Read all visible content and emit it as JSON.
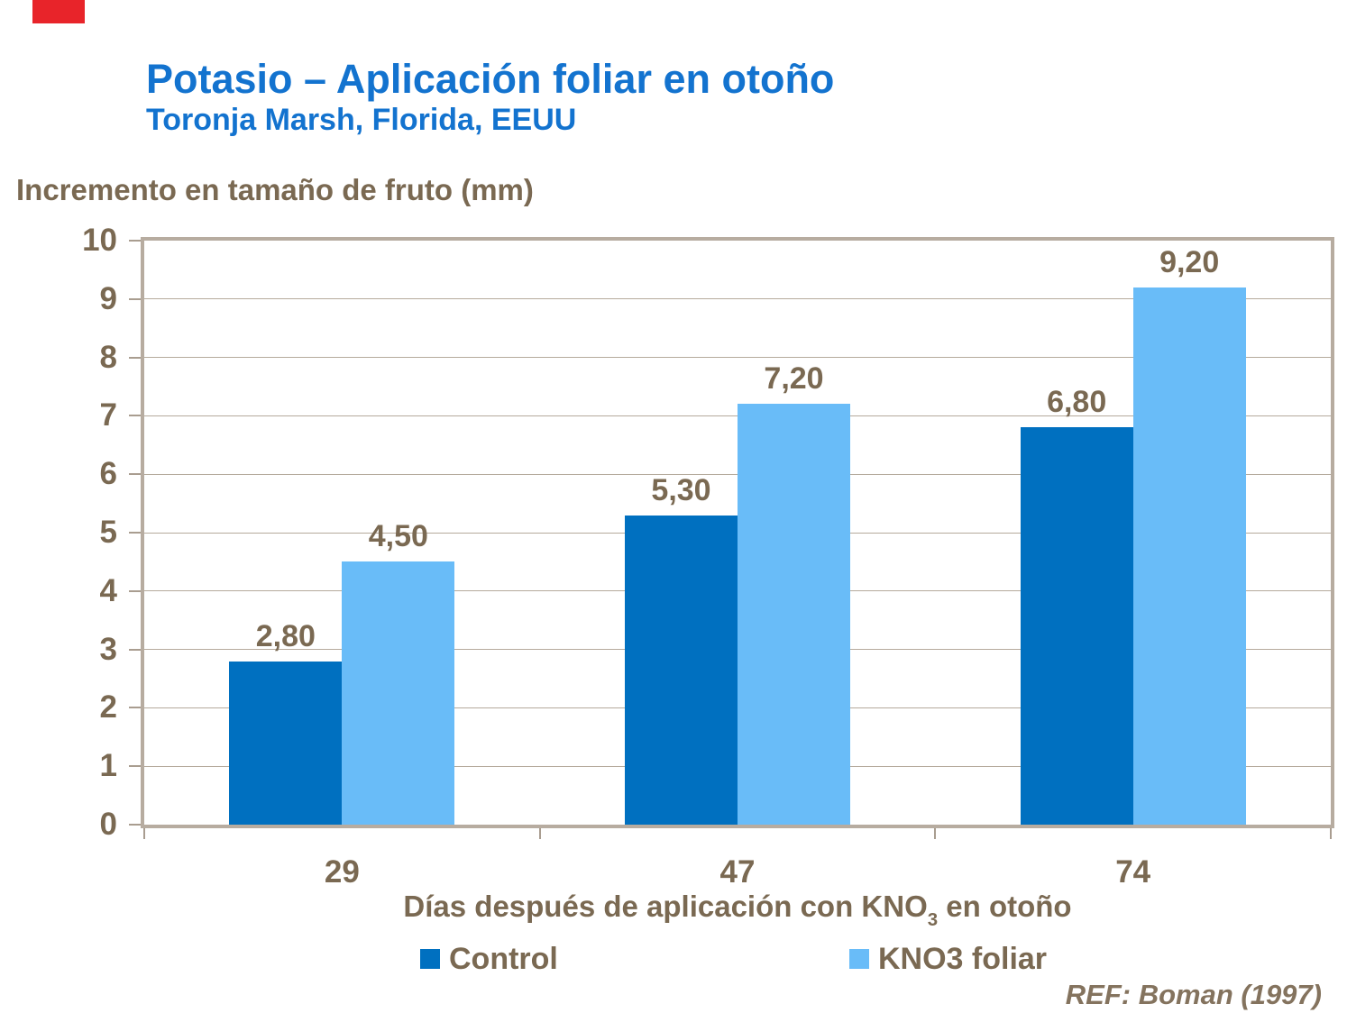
{
  "slide": {
    "title": "Potasio – Aplicación foliar en otoño",
    "subtitle": "Toronja Marsh, Florida, EEUU",
    "reference": "REF: Boman (1997)",
    "corner_mark_color": "#e8242a"
  },
  "chart_data": {
    "type": "bar",
    "title": "Potasio – Aplicación foliar en otoño",
    "subtitle": "Toronja Marsh, Florida, EEUU",
    "ylabel": "Incremento en tamaño de fruto (mm)",
    "xlabel": "Días después de aplicación con KNO3 en otoño",
    "xlabel_pre": "Días después de aplicación con KNO",
    "xlabel_sub": "3",
    "xlabel_post": " en otoño",
    "categories": [
      "29",
      "47",
      "74"
    ],
    "series": [
      {
        "name": "Control",
        "color": "#0070c0",
        "values": [
          2.8,
          5.3,
          6.8
        ],
        "labels": [
          "2,80",
          "5,30",
          "6,80"
        ]
      },
      {
        "name": "KNO3 foliar",
        "color": "#69bcf8",
        "values": [
          4.5,
          7.2,
          9.2
        ],
        "labels": [
          "4,50",
          "7,20",
          "9,20"
        ]
      }
    ],
    "ylim": [
      0,
      10
    ],
    "yticks": [
      0,
      1,
      2,
      3,
      4,
      5,
      6,
      7,
      8,
      9,
      10
    ],
    "grid": true,
    "legend_position": "bottom",
    "colors": {
      "title_blue": "#1373cf",
      "text_taupe": "#7a6952",
      "gridline": "#b5aa9c",
      "plot_border": "#b7aca0",
      "control_bar": "#0070c0",
      "kno3_bar": "#69bcf8"
    }
  }
}
